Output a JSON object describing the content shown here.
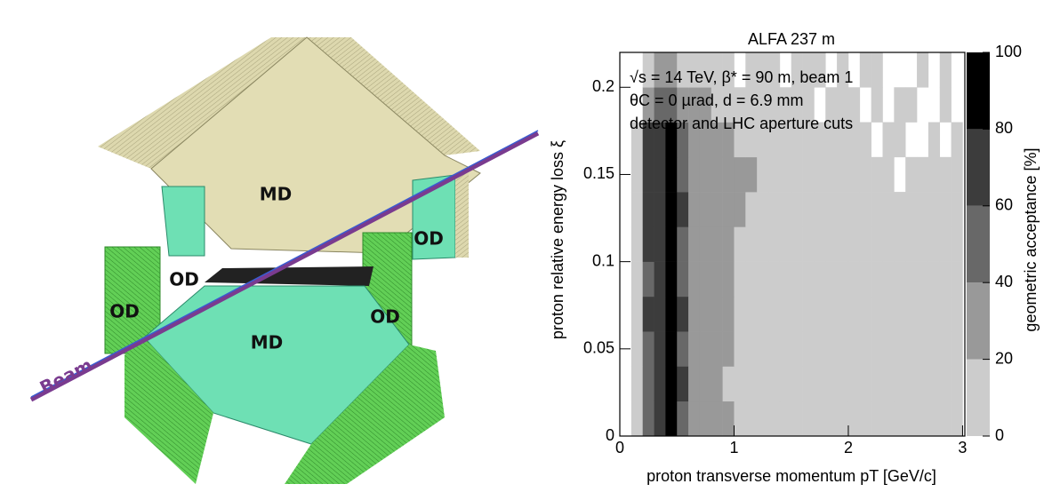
{
  "diagram": {
    "labels": [
      "MD",
      "MD",
      "OD",
      "OD",
      "OD",
      "OD",
      "Beam"
    ]
  },
  "chart_data": {
    "type": "heatmap",
    "title": "ALFA 237 m",
    "annotations": [
      "√s = 14 TeV, β* = 90 m, beam 1",
      "θC = 0 µrad, d = 6.9 mm",
      "detector and LHC aperture cuts"
    ],
    "xlabel": "proton transverse momentum pT [GeV/c]",
    "ylabel": "proton relative energy loss ξ",
    "zlabel": "geometric acceptance [%]",
    "xlim": [
      0,
      3.02
    ],
    "xticks": [
      0,
      1,
      2,
      3
    ],
    "ylim": [
      0,
      0.22
    ],
    "yticks": [
      0,
      0.05,
      0.1,
      0.15,
      0.2
    ],
    "zlim": [
      0,
      100
    ],
    "zticks": [
      0,
      20,
      40,
      60,
      80,
      100
    ],
    "colors": [
      "#cccccc",
      "#999999",
      "#686868",
      "#3c3c3c",
      "#000000"
    ],
    "xbins": [
      0,
      0.1,
      0.2,
      0.3,
      0.4,
      0.5,
      0.6,
      0.7,
      0.8,
      0.9,
      1.0,
      1.1,
      1.2,
      1.3,
      1.4,
      1.5,
      1.6,
      1.7,
      1.8,
      1.9,
      2.0,
      2.1,
      2.2,
      2.3,
      2.4,
      2.5,
      2.6,
      2.7,
      2.8,
      2.9,
      3.0
    ],
    "ybins": [
      0,
      0.02,
      0.04,
      0.06,
      0.08,
      0.1,
      0.12,
      0.14,
      0.16,
      0.18,
      0.2,
      0.22
    ],
    "z": [
      [
        null,
        15,
        50,
        70,
        90,
        55,
        30,
        25,
        20,
        20,
        15,
        15,
        15,
        15,
        15,
        15,
        15,
        15,
        15,
        15,
        15,
        15,
        15,
        15,
        15,
        15,
        15,
        15,
        15,
        15
      ],
      [
        null,
        15,
        55,
        75,
        90,
        60,
        35,
        25,
        20,
        18,
        15,
        15,
        15,
        15,
        15,
        15,
        15,
        15,
        15,
        15,
        15,
        15,
        15,
        15,
        15,
        15,
        15,
        15,
        15,
        15
      ],
      [
        null,
        15,
        55,
        70,
        85,
        55,
        30,
        25,
        22,
        20,
        15,
        15,
        15,
        15,
        15,
        15,
        15,
        15,
        15,
        15,
        15,
        15,
        15,
        15,
        15,
        15,
        15,
        15,
        15,
        15
      ],
      [
        null,
        15,
        60,
        75,
        90,
        60,
        35,
        25,
        20,
        20,
        15,
        15,
        15,
        15,
        15,
        15,
        15,
        15,
        15,
        15,
        15,
        15,
        15,
        15,
        15,
        15,
        15,
        15,
        15,
        15
      ],
      [
        null,
        15,
        55,
        70,
        85,
        55,
        30,
        25,
        22,
        20,
        18,
        15,
        15,
        15,
        15,
        15,
        15,
        15,
        15,
        15,
        15,
        15,
        15,
        15,
        15,
        15,
        15,
        15,
        15,
        15
      ],
      [
        null,
        15,
        60,
        70,
        85,
        55,
        35,
        25,
        22,
        20,
        18,
        15,
        15,
        15,
        15,
        15,
        15,
        15,
        15,
        15,
        15,
        15,
        15,
        15,
        15,
        15,
        15,
        15,
        15,
        15
      ],
      [
        null,
        15,
        65,
        75,
        90,
        60,
        35,
        30,
        25,
        22,
        20,
        18,
        15,
        15,
        15,
        15,
        15,
        15,
        15,
        15,
        15,
        15,
        15,
        15,
        15,
        15,
        15,
        15,
        15,
        15
      ],
      [
        null,
        15,
        65,
        75,
        90,
        55,
        30,
        30,
        25,
        25,
        22,
        20,
        15,
        15,
        15,
        15,
        15,
        15,
        15,
        15,
        15,
        15,
        15,
        15,
        null,
        15,
        15,
        15,
        15,
        15
      ],
      [
        null,
        15,
        60,
        70,
        85,
        50,
        30,
        25,
        22,
        20,
        18,
        15,
        15,
        15,
        15,
        15,
        15,
        15,
        15,
        15,
        15,
        15,
        null,
        15,
        15,
        null,
        null,
        15,
        null,
        15
      ],
      [
        null,
        null,
        35,
        40,
        50,
        35,
        25,
        20,
        18,
        15,
        15,
        15,
        15,
        15,
        15,
        15,
        15,
        null,
        15,
        15,
        15,
        null,
        15,
        null,
        15,
        15,
        null,
        null,
        15,
        null
      ],
      [
        null,
        null,
        15,
        25,
        25,
        15,
        15,
        15,
        15,
        15,
        null,
        15,
        15,
        15,
        null,
        15,
        15,
        15,
        null,
        15,
        null,
        15,
        15,
        null,
        null,
        null,
        15,
        null,
        15,
        null
      ]
    ]
  }
}
